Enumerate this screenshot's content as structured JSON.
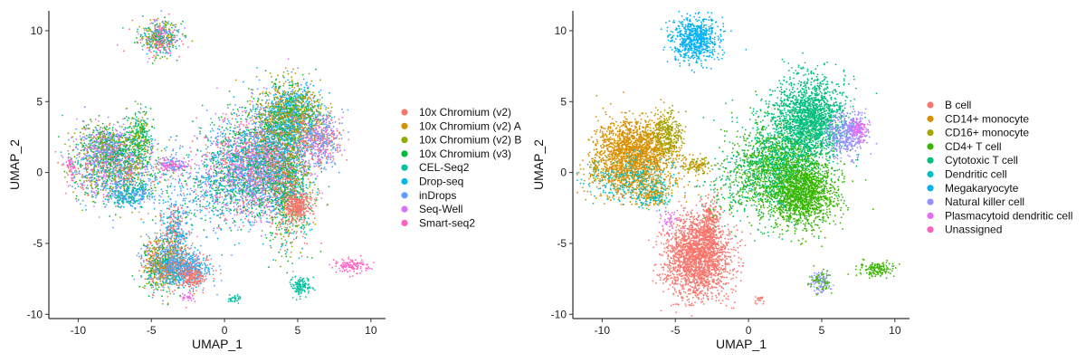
{
  "chart_data": [
    {
      "type": "scatter",
      "xlabel": "UMAP_1",
      "ylabel": "UMAP_2",
      "xlim": [
        -12,
        11
      ],
      "ylim": [
        -10.3,
        11.4
      ],
      "x_ticks": [
        -10,
        -5,
        0,
        5,
        10
      ],
      "y_ticks": [
        -10,
        -5,
        0,
        5,
        10
      ],
      "tick_labels_x": [
        "-10",
        "-5",
        "0",
        "5",
        "10"
      ],
      "tick_labels_y": [
        "-10",
        "-5",
        "0",
        "5",
        "10"
      ],
      "grid": false,
      "legend_position": "right",
      "series": [
        {
          "name": "10x Chromium (v2)",
          "color": "#F8766D"
        },
        {
          "name": "10x Chromium (v2) A",
          "color": "#D39200"
        },
        {
          "name": "10x Chromium (v2) B",
          "color": "#93AA00"
        },
        {
          "name": "10x Chromium (v3)",
          "color": "#00BA38"
        },
        {
          "name": "CEL-Seq2",
          "color": "#00C19F"
        },
        {
          "name": "Drop-seq",
          "color": "#00B9E3"
        },
        {
          "name": "inDrops",
          "color": "#619CFF"
        },
        {
          "name": "Seq-Well",
          "color": "#DB72FB"
        },
        {
          "name": "Smart-seq2",
          "color": "#FF61C3"
        }
      ],
      "clusters": [
        {
          "cx": -4.5,
          "cy": 9.5,
          "sx": 0.7,
          "sy": 0.6,
          "n": 500,
          "mix": [
            0,
            1,
            2,
            3,
            4,
            5,
            6,
            7,
            8
          ]
        },
        {
          "cx": -8,
          "cy": 1.8,
          "sx": 1.0,
          "sy": 0.8,
          "n": 700,
          "mix": [
            7,
            6,
            2,
            3
          ]
        },
        {
          "cx": -7.3,
          "cy": 0.2,
          "sx": 1.6,
          "sy": 1.2,
          "n": 1300,
          "mix": [
            6,
            5,
            7,
            3,
            0,
            2
          ]
        },
        {
          "cx": -5.8,
          "cy": 2.5,
          "sx": 0.4,
          "sy": 0.9,
          "n": 280,
          "mix": [
            2,
            3,
            4
          ]
        },
        {
          "cx": -6.5,
          "cy": -1.6,
          "sx": 0.7,
          "sy": 0.4,
          "n": 250,
          "mix": [
            6,
            5,
            4
          ]
        },
        {
          "cx": -3.5,
          "cy": 0.5,
          "sx": 0.5,
          "sy": 0.3,
          "n": 150,
          "mix": [
            7,
            8,
            6
          ]
        },
        {
          "cx": -10.5,
          "cy": 0.3,
          "sx": 0.15,
          "sy": 0.4,
          "n": 40,
          "mix": [
            8
          ]
        },
        {
          "cx": -3.5,
          "cy": -4.5,
          "sx": 0.5,
          "sy": 1.2,
          "n": 450,
          "mix": [
            6,
            5,
            0
          ]
        },
        {
          "cx": -4.3,
          "cy": -6.5,
          "sx": 0.7,
          "sy": 0.9,
          "n": 700,
          "mix": [
            2,
            3,
            1,
            0,
            6
          ]
        },
        {
          "cx": -2.8,
          "cy": -6.8,
          "sx": 0.9,
          "sy": 0.6,
          "n": 700,
          "mix": [
            6,
            5,
            0
          ]
        },
        {
          "cx": -2.2,
          "cy": -7.4,
          "sx": 0.4,
          "sy": 0.4,
          "n": 150,
          "mix": [
            0
          ]
        },
        {
          "cx": -2.5,
          "cy": -8.8,
          "sx": 0.2,
          "sy": 0.15,
          "n": 30,
          "mix": [
            7,
            8
          ]
        },
        {
          "cx": 1.5,
          "cy": 0.3,
          "sx": 1.5,
          "sy": 1.8,
          "n": 2200,
          "mix": [
            6,
            5,
            7,
            3,
            0
          ]
        },
        {
          "cx": 3.5,
          "cy": 0.8,
          "sx": 1.1,
          "sy": 1.8,
          "n": 1300,
          "mix": [
            6,
            7,
            5,
            3,
            0
          ]
        },
        {
          "cx": 4.5,
          "cy": 4.0,
          "sx": 1.1,
          "sy": 1.2,
          "n": 1500,
          "mix": [
            2,
            3,
            1,
            6,
            5
          ]
        },
        {
          "cx": 4.4,
          "cy": -1.0,
          "sx": 0.8,
          "sy": 2.2,
          "n": 900,
          "mix": [
            3,
            2,
            5,
            0
          ]
        },
        {
          "cx": 6.5,
          "cy": 2.3,
          "sx": 0.8,
          "sy": 0.9,
          "n": 500,
          "mix": [
            0,
            6,
            7
          ]
        },
        {
          "cx": 5.0,
          "cy": -2.4,
          "sx": 0.4,
          "sy": 0.5,
          "n": 300,
          "mix": [
            0
          ]
        },
        {
          "cx": 5.2,
          "cy": -8.0,
          "sx": 0.35,
          "sy": 0.35,
          "n": 120,
          "mix": [
            4
          ]
        },
        {
          "cx": 0.7,
          "cy": -8.9,
          "sx": 0.2,
          "sy": 0.2,
          "n": 30,
          "mix": [
            4
          ]
        },
        {
          "cx": 8.7,
          "cy": -6.6,
          "sx": 0.6,
          "sy": 0.25,
          "n": 120,
          "mix": [
            8
          ]
        },
        {
          "cx": -1.5,
          "cy": -1.5,
          "sx": 1.8,
          "sy": 1.4,
          "n": 250,
          "mix": [
            6,
            5,
            3
          ]
        }
      ]
    },
    {
      "type": "scatter",
      "xlabel": "UMAP_1",
      "ylabel": "UMAP_2",
      "xlim": [
        -12,
        11
      ],
      "ylim": [
        -10.3,
        11.4
      ],
      "x_ticks": [
        -10,
        -5,
        0,
        5,
        10
      ],
      "y_ticks": [
        -10,
        -5,
        0,
        5,
        10
      ],
      "tick_labels_x": [
        "-10",
        "-5",
        "0",
        "5",
        "10"
      ],
      "tick_labels_y": [
        "-10",
        "-5",
        "0",
        "5",
        "10"
      ],
      "grid": false,
      "legend_position": "right",
      "series": [
        {
          "name": "B cell",
          "color": "#F8766D"
        },
        {
          "name": "CD14+ monocyte",
          "color": "#D89000"
        },
        {
          "name": "CD16+ monocyte",
          "color": "#A3A500"
        },
        {
          "name": "CD4+ T cell",
          "color": "#39B600"
        },
        {
          "name": "Cytotoxic T cell",
          "color": "#00BF7D"
        },
        {
          "name": "Dendritic cell",
          "color": "#00BFC4"
        },
        {
          "name": "Megakaryocyte",
          "color": "#00B0F6"
        },
        {
          "name": "Natural killer cell",
          "color": "#9590FF"
        },
        {
          "name": "Plasmacytoid dendritic cell",
          "color": "#E76BF3"
        },
        {
          "name": "Unassigned",
          "color": "#FF62BC"
        }
      ],
      "clusters": [
        {
          "cx": -3.6,
          "cy": 9.4,
          "sx": 0.8,
          "sy": 0.8,
          "n": 700,
          "mix": [
            6
          ]
        },
        {
          "cx": -7.8,
          "cy": 1.5,
          "sx": 1.3,
          "sy": 1.1,
          "n": 1700,
          "mix": [
            1
          ]
        },
        {
          "cx": -8.0,
          "cy": -0.5,
          "sx": 1.6,
          "sy": 0.8,
          "n": 700,
          "mix": [
            1,
            5
          ]
        },
        {
          "cx": -5.5,
          "cy": 2.7,
          "sx": 0.5,
          "sy": 0.8,
          "n": 300,
          "mix": [
            2
          ]
        },
        {
          "cx": -10.5,
          "cy": 0.3,
          "sx": 0.15,
          "sy": 0.4,
          "n": 40,
          "mix": [
            1,
            2
          ]
        },
        {
          "cx": -6.5,
          "cy": -1.6,
          "sx": 0.6,
          "sy": 0.4,
          "n": 200,
          "mix": [
            5,
            1
          ]
        },
        {
          "cx": -3.5,
          "cy": 0.5,
          "sx": 0.6,
          "sy": 0.3,
          "n": 120,
          "mix": [
            1,
            2
          ]
        },
        {
          "cx": -3.5,
          "cy": -6.0,
          "sx": 1.1,
          "sy": 1.4,
          "n": 2000,
          "mix": [
            0
          ]
        },
        {
          "cx": -2.7,
          "cy": -3.8,
          "sx": 0.4,
          "sy": 0.9,
          "n": 300,
          "mix": [
            0
          ]
        },
        {
          "cx": 2.0,
          "cy": 0.3,
          "sx": 1.5,
          "sy": 1.7,
          "n": 2000,
          "mix": [
            3,
            4
          ]
        },
        {
          "cx": 4.2,
          "cy": 3.8,
          "sx": 1.2,
          "sy": 1.4,
          "n": 1800,
          "mix": [
            4
          ]
        },
        {
          "cx": 3.8,
          "cy": -1.5,
          "sx": 1.1,
          "sy": 1.2,
          "n": 1300,
          "mix": [
            3
          ]
        },
        {
          "cx": 6.7,
          "cy": 2.7,
          "sx": 0.7,
          "sy": 0.8,
          "n": 400,
          "mix": [
            7
          ]
        },
        {
          "cx": 7.5,
          "cy": 3.0,
          "sx": 0.3,
          "sy": 0.4,
          "n": 100,
          "mix": [
            8
          ]
        },
        {
          "cx": 4.9,
          "cy": -7.8,
          "sx": 0.35,
          "sy": 0.4,
          "n": 150,
          "mix": [
            3,
            7
          ]
        },
        {
          "cx": 8.8,
          "cy": -6.8,
          "sx": 0.6,
          "sy": 0.25,
          "n": 150,
          "mix": [
            3
          ]
        },
        {
          "cx": -5.5,
          "cy": -3.3,
          "sx": 0.4,
          "sy": 0.3,
          "n": 40,
          "mix": [
            8
          ]
        },
        {
          "cx": 0.8,
          "cy": -8.9,
          "sx": 0.2,
          "sy": 0.2,
          "n": 20,
          "mix": [
            0
          ]
        },
        {
          "cx": -1.0,
          "cy": -1.0,
          "sx": 1.5,
          "sy": 1.2,
          "n": 150,
          "mix": [
            3,
            4
          ]
        }
      ]
    }
  ]
}
